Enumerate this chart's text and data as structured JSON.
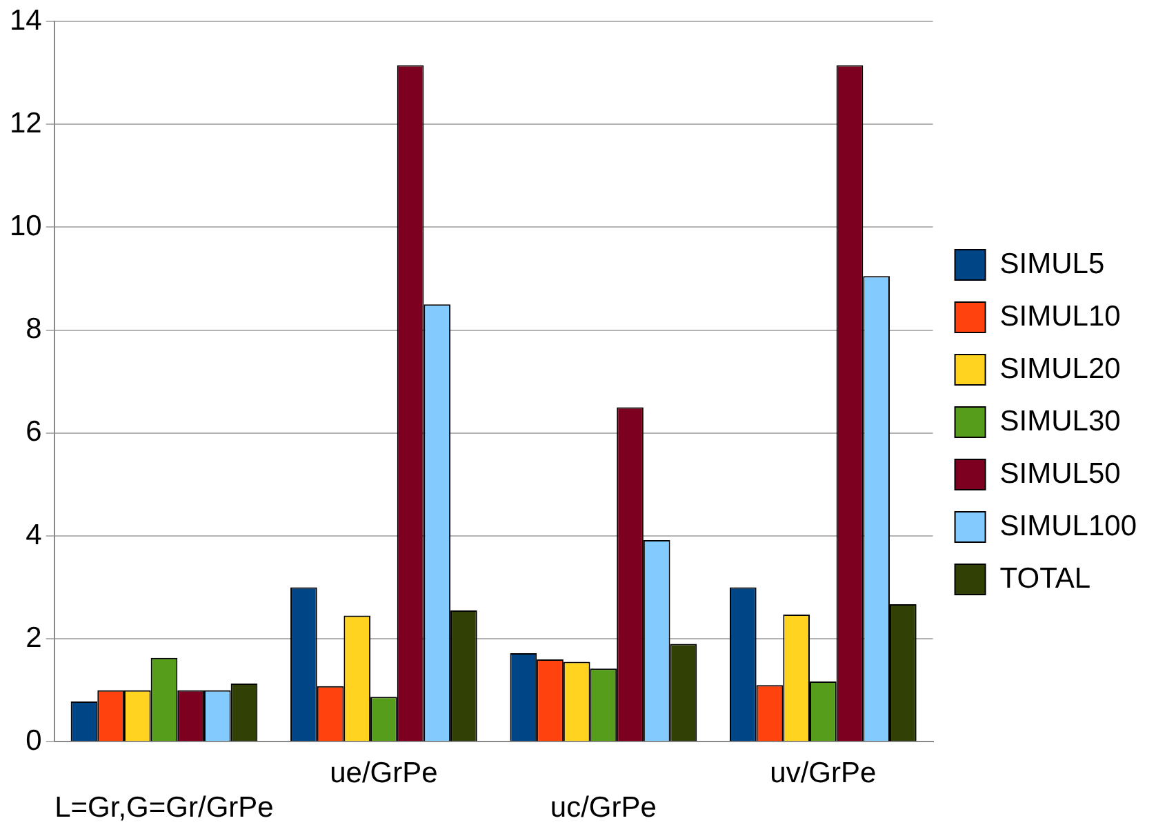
{
  "chart_data": {
    "type": "bar",
    "categories": [
      "L=Gr,G=Gr/GrPe",
      "ue/GrPe",
      "uc/GrPe",
      "uv/GrPe"
    ],
    "series": [
      {
        "name": "SIMUL5",
        "color": "#004586",
        "values": [
          0.78,
          3.0,
          1.72,
          3.0
        ]
      },
      {
        "name": "SIMUL10",
        "color": "#ff420e",
        "values": [
          1.0,
          1.08,
          1.6,
          1.1
        ]
      },
      {
        "name": "SIMUL20",
        "color": "#ffd320",
        "values": [
          1.0,
          2.45,
          1.55,
          2.47
        ]
      },
      {
        "name": "SIMUL30",
        "color": "#579d1c",
        "values": [
          1.63,
          0.87,
          1.42,
          1.17
        ]
      },
      {
        "name": "SIMUL50",
        "color": "#7e0021",
        "values": [
          1.0,
          13.15,
          6.5,
          13.15
        ]
      },
      {
        "name": "SIMUL100",
        "color": "#83caff",
        "values": [
          1.0,
          8.5,
          3.92,
          9.05
        ]
      },
      {
        "name": "TOTAL",
        "color": "#314004",
        "values": [
          1.13,
          2.55,
          1.9,
          2.67
        ]
      }
    ],
    "ylim": [
      0,
      14
    ],
    "yticks": [
      0,
      2,
      4,
      6,
      8,
      10,
      12,
      14
    ],
    "grid": "y",
    "legend": "right"
  }
}
